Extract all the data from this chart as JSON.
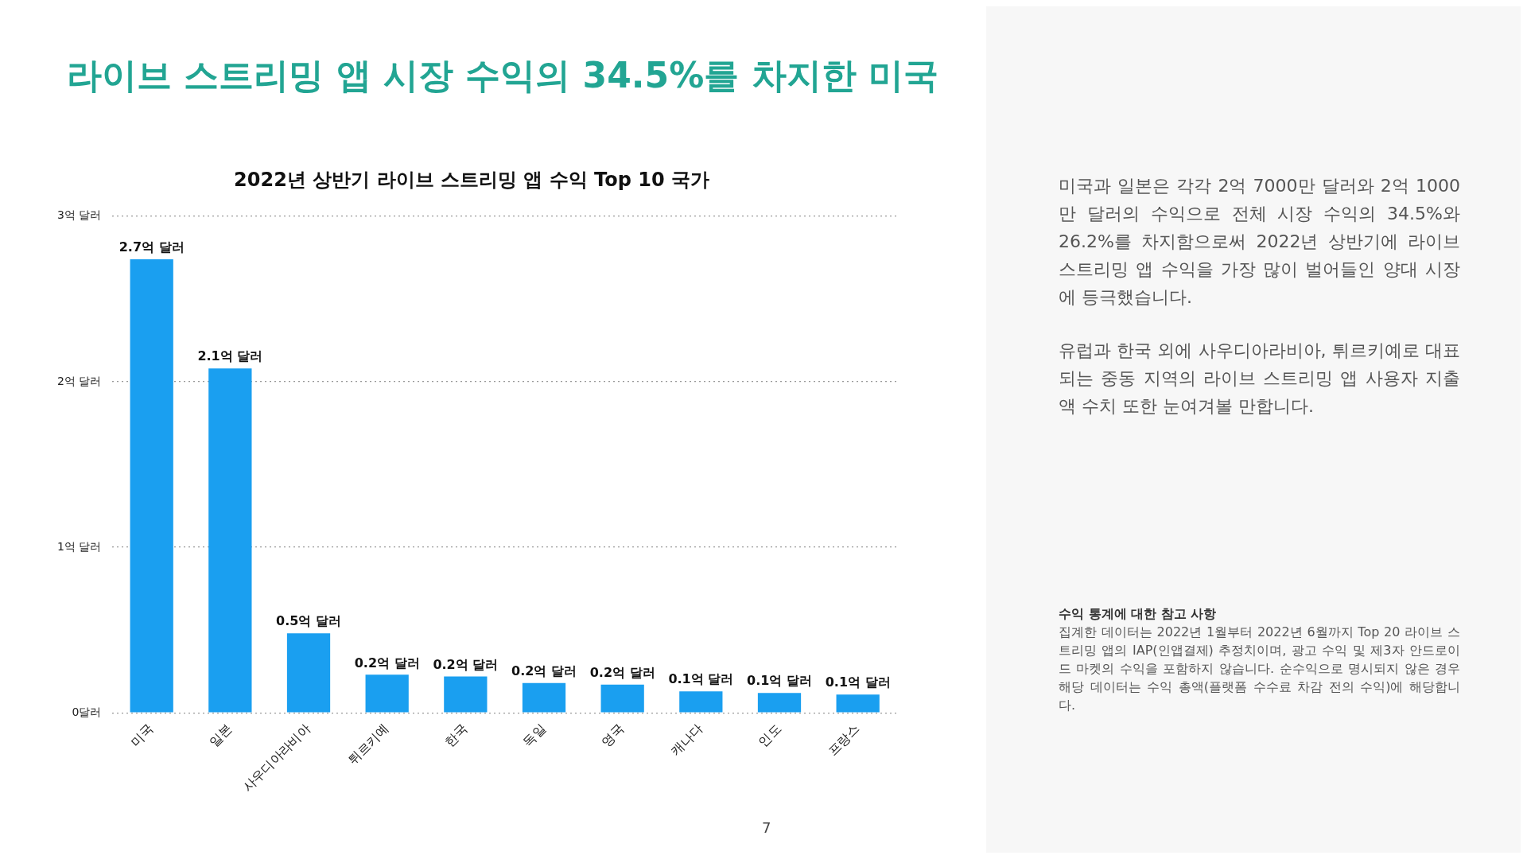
{
  "chart_data": {
    "type": "bar",
    "title": "2022년 상반기 라이브 스트리밍 앱 수익 Top 10 국가",
    "categories": [
      "미국",
      "일본",
      "사우디아라비아",
      "튀르키예",
      "한국",
      "독일",
      "영국",
      "캐나다",
      "인도",
      "프랑스"
    ],
    "values": [
      2.74,
      2.08,
      0.48,
      0.23,
      0.22,
      0.18,
      0.17,
      0.13,
      0.12,
      0.11
    ],
    "value_labels": [
      "2.7억 달러",
      "2.1억 달러",
      "0.5억 달러",
      "0.2억 달러",
      "0.2억 달러",
      "0.2억 달러",
      "0.2억 달러",
      "0.1억 달러",
      "0.1억 달러",
      "0.1억 달러"
    ],
    "color": "#1a9ff0",
    "ylim": [
      0,
      3
    ],
    "yticks": [
      {
        "value": 0,
        "label": "0달러"
      },
      {
        "value": 1,
        "label": "1억 달러"
      },
      {
        "value": 2,
        "label": "2억 달러"
      },
      {
        "value": 3,
        "label": "3억 달러"
      }
    ],
    "grid": "y",
    "annotations": [
      "라이브 스트리밍 앱 시장 수익의 34.5%를 차지한 미국",
      "미국과 일본은 각각 2억 7000만 달러와 2억 1000만 달러의 수익으로 전체 시장 수익의 34.5%와 26.2%를 차지함으로써 2022년 상반기에 라이브 스트리밍 앱 수익을 가장 많이 벌어들인 양대 시장에 등극했습니다.",
      "유럽과 한국 외에 사우디아라비아, 튀르키예로 대표되는 중동 지역의 라이브 스트리밍 앱 사용자 지출액 수치 또한 눈여겨볼 만합니다.",
      "수익 통계에 대한 참고 사항",
      "집계한 데이터는 2022년 1월부터 2022년 6월까지 Top 20 라이브 스트리밍 앱의 IAP(인앱결제) 추정치이며, 광고 수익 및 제3자 안드로이드 마켓의 수익을 포함하지 않습니다. 순수익으로 명시되지 않은 경우 해당 데이터는 수익 총액(플랫폼 수수료 차감 전의 수익)에 해당합니다.",
      "7"
    ]
  }
}
